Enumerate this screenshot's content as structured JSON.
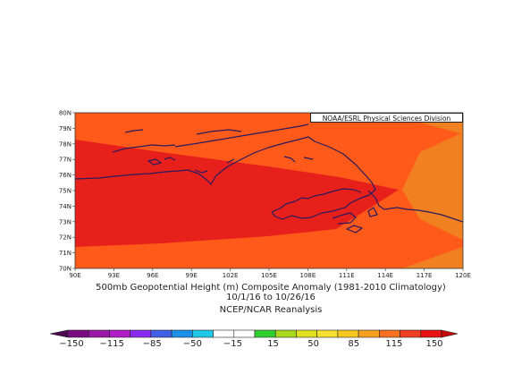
{
  "map": {
    "credit": "NOAA/ESRL Physical Sciences Division",
    "lat_labels": [
      "80N",
      "79N",
      "78N",
      "77N",
      "76N",
      "75N",
      "74N",
      "73N",
      "72N",
      "71N",
      "70N"
    ],
    "lon_labels": [
      "90E",
      "93E",
      "96E",
      "99E",
      "102E",
      "105E",
      "108E",
      "111E",
      "114E",
      "117E",
      "120E"
    ],
    "caption_line1": "500mb Geopotential Height (m) Composite Anomaly (1981-2010 Climatology)",
    "caption_line2": "10/1/16  to 10/26/16",
    "caption_line3": "NCEP/NCAR Reanalysis",
    "colors": {
      "outer": "#f08020",
      "mid": "#ff5a1a",
      "core": "#e8201c",
      "coast": "#2a1a5e"
    }
  },
  "colorbar": {
    "labels": [
      "-150",
      "-115",
      "-85",
      "-50",
      "-15",
      "15",
      "50",
      "85",
      "115",
      "150"
    ],
    "colors": [
      "#7a0a80",
      "#9a18a8",
      "#b01ec8",
      "#8a2cf0",
      "#4060e8",
      "#1a90e8",
      "#20c8e8",
      "#ffffff",
      "#ffffff",
      "#30d030",
      "#a8d820",
      "#e0e020",
      "#f8e030",
      "#f8c820",
      "#f8a020",
      "#f87020",
      "#f04020",
      "#e81010"
    ]
  }
}
